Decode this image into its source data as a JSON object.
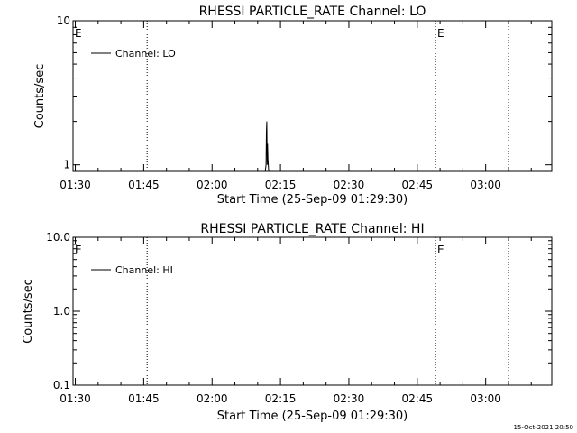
{
  "footer": {
    "timestamp": "15-Oct-2021 20:50"
  },
  "chart_data": [
    {
      "type": "line",
      "title": "RHESSI PARTICLE_RATE Channel: LO",
      "xlabel": "Start Time (25-Sep-09 01:29:30)",
      "ylabel": "Counts/sec",
      "y_scale": "log",
      "ylim": [
        0.9,
        10
      ],
      "y_ticks": [
        1,
        10
      ],
      "y_tick_labels": [
        "1",
        "10"
      ],
      "xlim": [
        "01:29:30",
        "03:14:30"
      ],
      "x_ticks": [
        "01:30",
        "01:45",
        "02:00",
        "02:15",
        "02:30",
        "02:45",
        "03:00"
      ],
      "grid": false,
      "legend": {
        "position": "top-left",
        "entries": [
          "Channel: LO"
        ]
      },
      "markers": [
        {
          "time": "01:45:45",
          "label": ""
        },
        {
          "time": "02:49:00",
          "label": "E"
        },
        {
          "time": "03:05:00",
          "label": ""
        }
      ],
      "start_marker_label": "E",
      "series": [
        {
          "name": "Channel: LO",
          "x": [
            "02:11:40",
            "02:11:50",
            "02:11:55",
            "02:12:00",
            "02:12:05",
            "02:12:10",
            "02:12:15",
            "02:12:20",
            "02:12:25",
            "02:12:35"
          ],
          "values": [
            0.9,
            1.0,
            1.7,
            2.0,
            1.0,
            1.4,
            1.1,
            1.0,
            0.9,
            0.9
          ]
        }
      ]
    },
    {
      "type": "line",
      "title": "RHESSI PARTICLE_RATE Channel: HI",
      "xlabel": "Start Time (25-Sep-09 01:29:30)",
      "ylabel": "Counts/sec",
      "y_scale": "log",
      "ylim": [
        0.1,
        10
      ],
      "y_ticks": [
        0.1,
        1,
        10
      ],
      "y_tick_labels": [
        "0.1",
        "1.0",
        "10.0"
      ],
      "xlim": [
        "01:29:30",
        "03:14:30"
      ],
      "x_ticks": [
        "01:30",
        "01:45",
        "02:00",
        "02:15",
        "02:30",
        "02:45",
        "03:00"
      ],
      "grid": false,
      "legend": {
        "position": "top-left",
        "entries": [
          "Channel: HI"
        ]
      },
      "markers": [
        {
          "time": "01:45:45",
          "label": ""
        },
        {
          "time": "02:49:00",
          "label": "E"
        },
        {
          "time": "03:05:00",
          "label": ""
        }
      ],
      "start_marker_label": "E",
      "series": [
        {
          "name": "Channel: HI",
          "x": [],
          "values": []
        }
      ]
    }
  ]
}
